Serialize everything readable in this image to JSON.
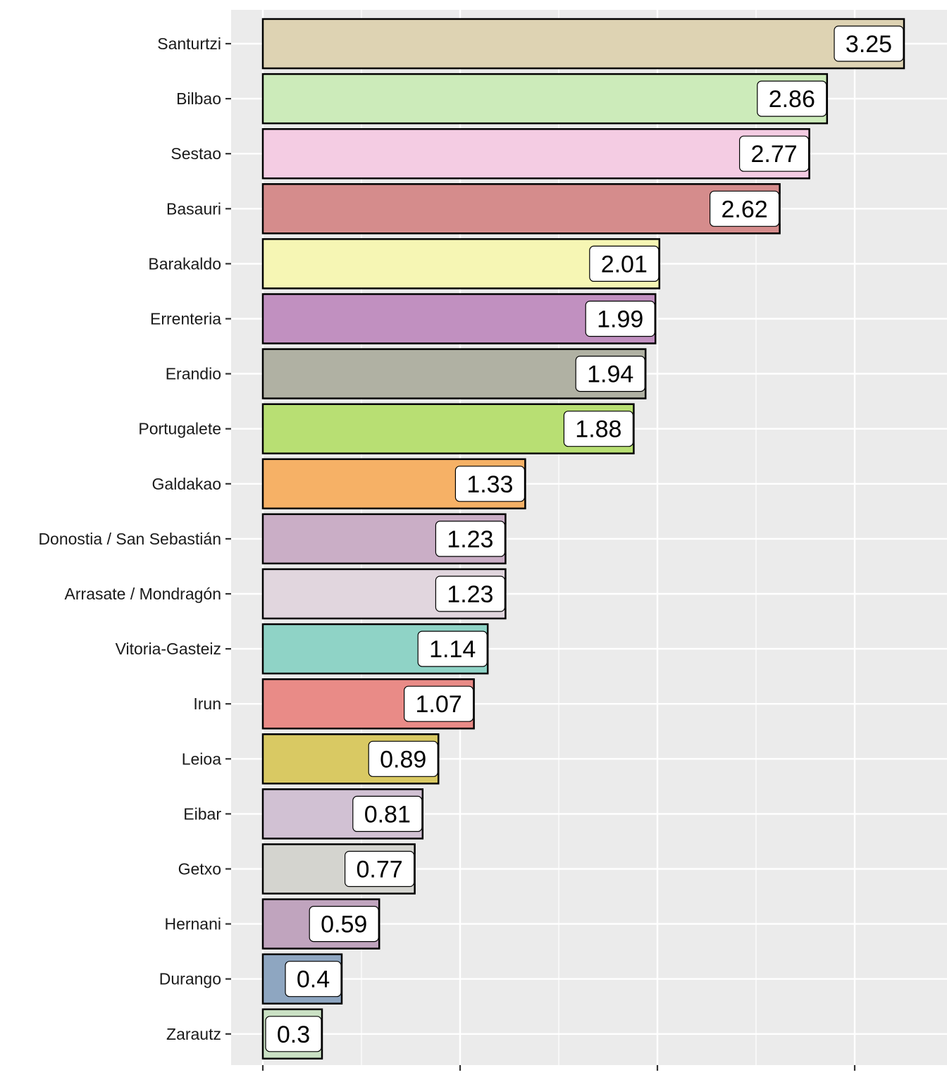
{
  "chart_data": {
    "type": "bar",
    "orientation": "horizontal",
    "title": "",
    "xlabel": "",
    "ylabel": "",
    "xlim": [
      -0.16,
      3.43
    ],
    "x_ticks": [
      0,
      1,
      2,
      3
    ],
    "x_tick_labels_visible": false,
    "grid": true,
    "legend": "none",
    "categories": [
      "Santurtzi",
      "Bilbao",
      "Sestao",
      "Basauri",
      "Barakaldo",
      "Errenteria",
      "Erandio",
      "Portugalete",
      "Galdakao",
      "Donostia / San Sebastián",
      "Arrasate / Mondragón",
      "Vitoria-Gasteiz",
      "Irun",
      "Leioa",
      "Eibar",
      "Getxo",
      "Hernani",
      "Durango",
      "Zarautz"
    ],
    "values": [
      3.25,
      2.86,
      2.77,
      2.62,
      2.01,
      1.99,
      1.94,
      1.88,
      1.33,
      1.23,
      1.23,
      1.14,
      1.07,
      0.89,
      0.81,
      0.77,
      0.59,
      0.4,
      0.3
    ],
    "data_labels": [
      "3.25",
      "2.86",
      "2.77",
      "2.62",
      "2.01",
      "1.99",
      "1.94",
      "1.88",
      "1.33",
      "1.23",
      "1.23",
      "1.14",
      "1.07",
      "0.89",
      "0.81",
      "0.77",
      "0.59",
      "0.4",
      "0.3"
    ],
    "colors": [
      "#DED3B3",
      "#CCEBBA",
      "#F4CCE3",
      "#D58C8C",
      "#F6F6B4",
      "#C190C0",
      "#B0B1A3",
      "#B8DF73",
      "#F6B166",
      "#CAAEC6",
      "#E1D6DE",
      "#8FD3C6",
      "#E98B87",
      "#D9C963",
      "#D1C1D3",
      "#D4D4CF",
      "#C0A4BE",
      "#8EA6C1",
      "#CAE1C4"
    ],
    "panel_background": "#EBEBEB",
    "grid_color": "#FFFFFF",
    "bar_outline": "#000000"
  }
}
